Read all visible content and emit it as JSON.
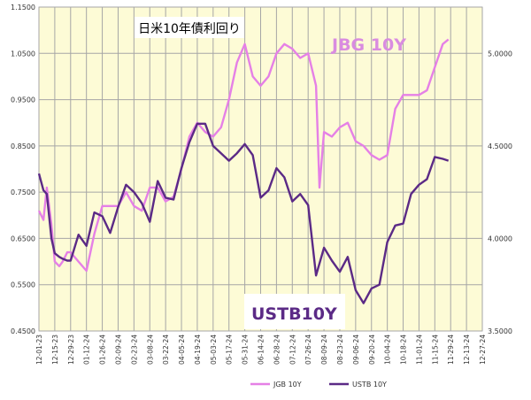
{
  "chart_data": {
    "type": "line",
    "title": "日米10年債利回り",
    "annotations": [
      "JBG 10Y",
      "USTB10Y"
    ],
    "plot_background": "#fdfbd6",
    "grid": true,
    "legend_placement": "bottom",
    "x_ticks": [
      "12-01-23",
      "12-15-23",
      "12-29-23",
      "01-12-24",
      "01-26-24",
      "02-09-24",
      "02-23-24",
      "03-08-24",
      "03-22-24",
      "04-05-24",
      "04-19-24",
      "05-03-24",
      "05-17-24",
      "05-31-24",
      "06-14-24",
      "06-28-24",
      "07-12-24",
      "07-26-24",
      "08-09-24",
      "08-23-24",
      "09-06-24",
      "09-20-24",
      "10-04-24",
      "10-18-24",
      "11-01-24",
      "11-15-24",
      "11-29-24",
      "12-13-24",
      "12-27-24"
    ],
    "xlim": [
      "12-01-23",
      "12-27-24"
    ],
    "y_left": {
      "ylim": [
        0.45,
        1.15
      ],
      "ticks": [
        "0.4500",
        "0.5500",
        "0.6500",
        "0.7500",
        "0.8500",
        "0.9500",
        "1.0500",
        "1.1500"
      ]
    },
    "y_right": {
      "ylim": [
        3.5,
        5.25
      ],
      "ticks": [
        "3.5000",
        "4.0000",
        "4.5000",
        "5.0000"
      ]
    },
    "series": [
      {
        "name": "JGB 10Y",
        "axis": "left",
        "color": "#e580e6",
        "x": [
          "12-01-23",
          "12-05-23",
          "12-08-23",
          "12-12-23",
          "12-15-23",
          "12-19-23",
          "12-22-23",
          "12-26-23",
          "12-29-23",
          "01-05-24",
          "01-12-24",
          "01-19-24",
          "01-26-24",
          "02-02-24",
          "02-09-24",
          "02-16-24",
          "02-23-24",
          "03-01-24",
          "03-08-24",
          "03-15-24",
          "03-22-24",
          "03-29-24",
          "04-05-24",
          "04-12-24",
          "04-19-24",
          "04-26-24",
          "05-03-24",
          "05-10-24",
          "05-17-24",
          "05-24-24",
          "05-31-24",
          "06-07-24",
          "06-14-24",
          "06-21-24",
          "06-28-24",
          "07-05-24",
          "07-12-24",
          "07-19-24",
          "07-26-24",
          "08-02-24",
          "08-05-24",
          "08-09-24",
          "08-16-24",
          "08-23-24",
          "08-30-24",
          "09-06-24",
          "09-13-24",
          "09-20-24",
          "09-27-24",
          "10-04-24",
          "10-11-24",
          "10-18-24",
          "10-25-24",
          "11-01-24",
          "11-08-24",
          "11-15-24",
          "11-22-24",
          "11-27-24"
        ],
        "values": [
          0.71,
          0.69,
          0.76,
          0.68,
          0.6,
          0.59,
          0.6,
          0.62,
          0.62,
          0.6,
          0.58,
          0.66,
          0.72,
          0.72,
          0.72,
          0.75,
          0.72,
          0.71,
          0.76,
          0.76,
          0.73,
          0.74,
          0.8,
          0.87,
          0.9,
          0.88,
          0.87,
          0.89,
          0.95,
          1.03,
          1.07,
          1.0,
          0.98,
          1.0,
          1.05,
          1.07,
          1.06,
          1.04,
          1.05,
          0.98,
          0.76,
          0.88,
          0.87,
          0.89,
          0.9,
          0.86,
          0.85,
          0.83,
          0.82,
          0.83,
          0.93,
          0.96,
          0.96,
          0.96,
          0.97,
          1.02,
          1.07,
          1.08
        ]
      },
      {
        "name": "USTB 10Y",
        "axis": "right",
        "color": "#5b2a86",
        "x": [
          "12-01-23",
          "12-05-23",
          "12-08-23",
          "12-12-23",
          "12-15-23",
          "12-19-23",
          "12-22-23",
          "12-26-23",
          "12-29-23",
          "01-05-24",
          "01-12-24",
          "01-19-24",
          "01-26-24",
          "02-02-24",
          "02-09-24",
          "02-16-24",
          "02-23-24",
          "03-01-24",
          "03-08-24",
          "03-15-24",
          "03-22-24",
          "03-29-24",
          "04-05-24",
          "04-12-24",
          "04-19-24",
          "04-26-24",
          "05-03-24",
          "05-10-24",
          "05-17-24",
          "05-24-24",
          "05-31-24",
          "06-07-24",
          "06-14-24",
          "06-21-24",
          "06-28-24",
          "07-05-24",
          "07-12-24",
          "07-19-24",
          "07-26-24",
          "08-02-24",
          "08-09-24",
          "08-16-24",
          "08-23-24",
          "08-30-24",
          "09-06-24",
          "09-13-24",
          "09-20-24",
          "09-27-24",
          "10-04-24",
          "10-11-24",
          "10-18-24",
          "10-25-24",
          "11-01-24",
          "11-08-24",
          "11-15-24",
          "11-22-24",
          "11-27-24"
        ],
        "values": [
          4.35,
          4.26,
          4.24,
          4.0,
          3.92,
          3.9,
          3.89,
          3.88,
          3.88,
          4.02,
          3.96,
          4.14,
          4.12,
          4.03,
          4.17,
          4.29,
          4.25,
          4.19,
          4.09,
          4.31,
          4.22,
          4.21,
          4.38,
          4.52,
          4.62,
          4.62,
          4.5,
          4.46,
          4.42,
          4.46,
          4.51,
          4.45,
          4.22,
          4.26,
          4.38,
          4.33,
          4.2,
          4.24,
          4.18,
          3.8,
          3.95,
          3.88,
          3.82,
          3.9,
          3.72,
          3.65,
          3.73,
          3.75,
          3.98,
          4.07,
          4.08,
          4.24,
          4.29,
          4.32,
          4.44,
          4.43,
          4.42
        ]
      }
    ]
  }
}
